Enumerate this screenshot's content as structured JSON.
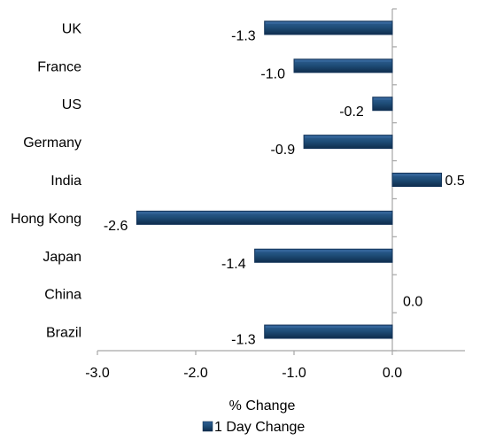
{
  "chart_data": {
    "type": "bar",
    "orientation": "horizontal",
    "categories": [
      "UK",
      "France",
      "US",
      "Germany",
      "India",
      "Hong Kong",
      "Japan",
      "China",
      "Brazil"
    ],
    "series": [
      {
        "name": "1 Day Change",
        "values": [
          -1.3,
          -1.0,
          -0.2,
          -0.9,
          0.5,
          -2.6,
          -1.4,
          0.0,
          -1.3
        ],
        "data_labels": [
          "-1.3",
          "-1.0",
          "-0.2",
          "-0.9",
          "0.5",
          "-2.6",
          "-1.4",
          "0.0",
          "-1.3"
        ],
        "color": "#1f4e79"
      }
    ],
    "xlabel": "% Change",
    "xlim": [
      -3.0,
      0.9
    ],
    "xticks": [
      -3.0,
      -2.0,
      -1.0,
      0.0
    ],
    "xtick_labels": [
      "-3.0",
      "-2.0",
      "-1.0",
      "0.0"
    ],
    "grid": false,
    "legend_position": "bottom"
  },
  "colors": {
    "bar_dark": "#15355a",
    "bar_mid": "#1f4e79",
    "bar_light": "#3d6fa5",
    "axis": "#a6a6a6"
  }
}
